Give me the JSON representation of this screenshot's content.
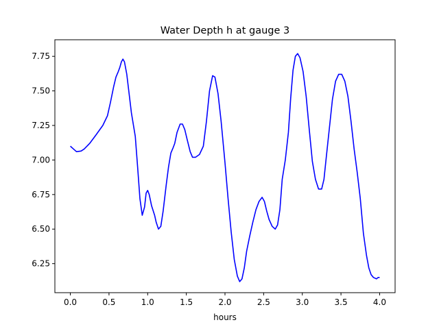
{
  "chart_data": {
    "type": "line",
    "title": "Water Depth h at gauge 3",
    "xlabel": "hours",
    "ylabel": "",
    "xlim": [
      -0.2,
      4.2
    ],
    "ylim": [
      6.04,
      7.87
    ],
    "xticks": [
      0.0,
      0.5,
      1.0,
      1.5,
      2.0,
      2.5,
      3.0,
      3.5,
      4.0
    ],
    "xtick_labels": [
      "0.0",
      "0.5",
      "1.0",
      "1.5",
      "2.0",
      "2.5",
      "3.0",
      "3.5",
      "4.0"
    ],
    "yticks": [
      6.25,
      6.5,
      6.75,
      7.0,
      7.25,
      7.5,
      7.75
    ],
    "ytick_labels": [
      "6.25",
      "6.50",
      "6.75",
      "7.00",
      "7.25",
      "7.50",
      "7.75"
    ],
    "grid": false,
    "legend": "none",
    "series": [
      {
        "color": "#0000ff",
        "points": [
          [
            0.0,
            7.1
          ],
          [
            0.04,
            7.08
          ],
          [
            0.08,
            7.06
          ],
          [
            0.14,
            7.065
          ],
          [
            0.18,
            7.08
          ],
          [
            0.25,
            7.12
          ],
          [
            0.33,
            7.18
          ],
          [
            0.42,
            7.25
          ],
          [
            0.48,
            7.32
          ],
          [
            0.52,
            7.42
          ],
          [
            0.56,
            7.53
          ],
          [
            0.59,
            7.6
          ],
          [
            0.62,
            7.64
          ],
          [
            0.64,
            7.67
          ],
          [
            0.66,
            7.71
          ],
          [
            0.68,
            7.73
          ],
          [
            0.7,
            7.71
          ],
          [
            0.73,
            7.62
          ],
          [
            0.76,
            7.48
          ],
          [
            0.79,
            7.34
          ],
          [
            0.84,
            7.17
          ],
          [
            0.87,
            6.95
          ],
          [
            0.9,
            6.72
          ],
          [
            0.93,
            6.6
          ],
          [
            0.96,
            6.66
          ],
          [
            0.98,
            6.76
          ],
          [
            1.0,
            6.78
          ],
          [
            1.02,
            6.75
          ],
          [
            1.05,
            6.67
          ],
          [
            1.09,
            6.6
          ],
          [
            1.11,
            6.55
          ],
          [
            1.14,
            6.5
          ],
          [
            1.17,
            6.52
          ],
          [
            1.2,
            6.63
          ],
          [
            1.24,
            6.82
          ],
          [
            1.27,
            6.95
          ],
          [
            1.3,
            7.05
          ],
          [
            1.33,
            7.09
          ],
          [
            1.35,
            7.12
          ],
          [
            1.38,
            7.2
          ],
          [
            1.42,
            7.26
          ],
          [
            1.45,
            7.26
          ],
          [
            1.48,
            7.22
          ],
          [
            1.51,
            7.15
          ],
          [
            1.55,
            7.06
          ],
          [
            1.58,
            7.02
          ],
          [
            1.62,
            7.02
          ],
          [
            1.67,
            7.04
          ],
          [
            1.72,
            7.1
          ],
          [
            1.76,
            7.28
          ],
          [
            1.8,
            7.5
          ],
          [
            1.84,
            7.61
          ],
          [
            1.87,
            7.6
          ],
          [
            1.91,
            7.48
          ],
          [
            1.95,
            7.28
          ],
          [
            2.0,
            6.98
          ],
          [
            2.04,
            6.72
          ],
          [
            2.08,
            6.48
          ],
          [
            2.12,
            6.28
          ],
          [
            2.16,
            6.16
          ],
          [
            2.19,
            6.12
          ],
          [
            2.22,
            6.14
          ],
          [
            2.25,
            6.22
          ],
          [
            2.28,
            6.34
          ],
          [
            2.32,
            6.45
          ],
          [
            2.36,
            6.55
          ],
          [
            2.4,
            6.64
          ],
          [
            2.44,
            6.7
          ],
          [
            2.48,
            6.73
          ],
          [
            2.51,
            6.7
          ],
          [
            2.54,
            6.63
          ],
          [
            2.57,
            6.57
          ],
          [
            2.61,
            6.52
          ],
          [
            2.65,
            6.5
          ],
          [
            2.68,
            6.53
          ],
          [
            2.71,
            6.64
          ],
          [
            2.74,
            6.86
          ],
          [
            2.78,
            7.0
          ],
          [
            2.82,
            7.2
          ],
          [
            2.85,
            7.45
          ],
          [
            2.88,
            7.65
          ],
          [
            2.91,
            7.75
          ],
          [
            2.94,
            7.77
          ],
          [
            2.97,
            7.74
          ],
          [
            3.01,
            7.64
          ],
          [
            3.05,
            7.46
          ],
          [
            3.09,
            7.22
          ],
          [
            3.13,
            6.99
          ],
          [
            3.17,
            6.86
          ],
          [
            3.21,
            6.79
          ],
          [
            3.25,
            6.79
          ],
          [
            3.28,
            6.86
          ],
          [
            3.31,
            7.02
          ],
          [
            3.35,
            7.23
          ],
          [
            3.39,
            7.44
          ],
          [
            3.43,
            7.57
          ],
          [
            3.47,
            7.62
          ],
          [
            3.51,
            7.62
          ],
          [
            3.55,
            7.57
          ],
          [
            3.59,
            7.46
          ],
          [
            3.63,
            7.28
          ],
          [
            3.67,
            7.08
          ],
          [
            3.71,
            6.91
          ],
          [
            3.75,
            6.72
          ],
          [
            3.79,
            6.47
          ],
          [
            3.83,
            6.31
          ],
          [
            3.86,
            6.22
          ],
          [
            3.89,
            6.17
          ],
          [
            3.92,
            6.15
          ],
          [
            3.96,
            6.14
          ],
          [
            3.98,
            6.15
          ],
          [
            4.0,
            6.15
          ]
        ]
      }
    ]
  }
}
